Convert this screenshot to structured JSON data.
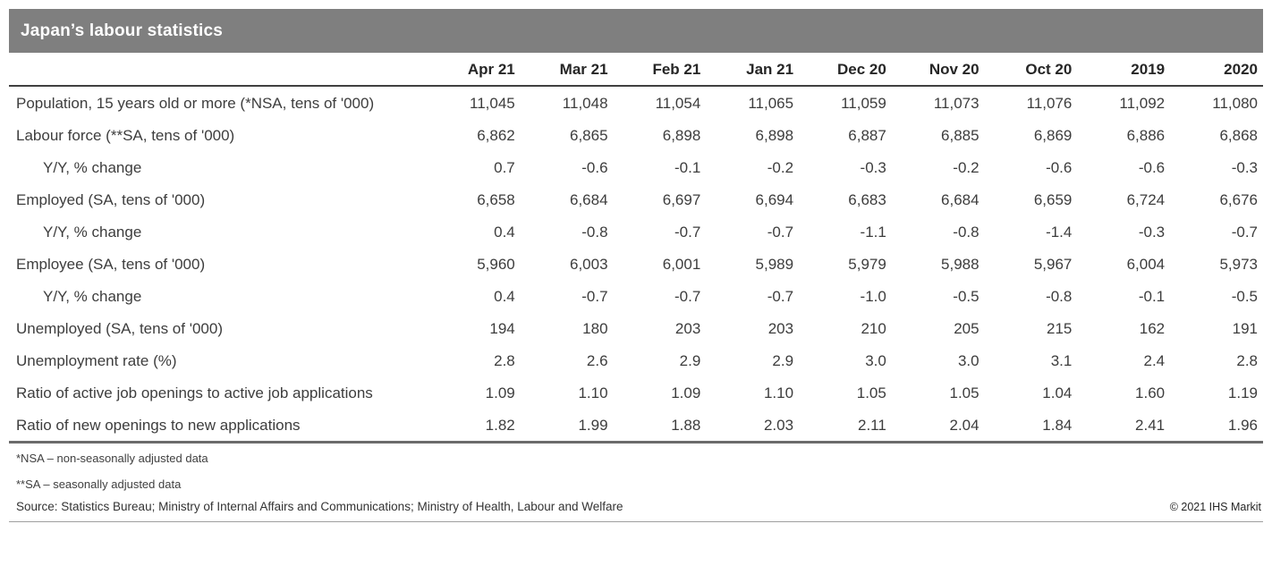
{
  "accent_colors": {
    "title_bar_bg": "#7f7f7f",
    "title_text": "#ffffff",
    "header_rule": "#404040",
    "table_bottom_rule": "#6b6b6b",
    "body_text": "#3d3d3d"
  },
  "chart_data": {
    "type": "table",
    "title": "Japan’s labour statistics",
    "columns": [
      "Apr 21",
      "Mar 21",
      "Feb 21",
      "Jan 21",
      "Dec 20",
      "Nov 20",
      "Oct 20",
      "2019",
      "2020"
    ],
    "rows": [
      {
        "label": "Population, 15 years old or more (*NSA, tens of '000)",
        "indent": false,
        "values": [
          "11,045",
          "11,048",
          "11,054",
          "11,065",
          "11,059",
          "11,073",
          "11,076",
          "11,092",
          "11,080"
        ]
      },
      {
        "label": "Labour force (**SA, tens of '000)",
        "indent": false,
        "values": [
          "6,862",
          "6,865",
          "6,898",
          "6,898",
          "6,887",
          "6,885",
          "6,869",
          "6,886",
          "6,868"
        ]
      },
      {
        "label": "Y/Y, % change",
        "indent": true,
        "values": [
          "0.7",
          "-0.6",
          "-0.1",
          "-0.2",
          "-0.3",
          "-0.2",
          "-0.6",
          "-0.6",
          "-0.3"
        ]
      },
      {
        "label": "Employed (SA, tens of '000)",
        "indent": false,
        "values": [
          "6,658",
          "6,684",
          "6,697",
          "6,694",
          "6,683",
          "6,684",
          "6,659",
          "6,724",
          "6,676"
        ]
      },
      {
        "label": "Y/Y, % change",
        "indent": true,
        "values": [
          "0.4",
          "-0.8",
          "-0.7",
          "-0.7",
          "-1.1",
          "-0.8",
          "-1.4",
          "-0.3",
          "-0.7"
        ]
      },
      {
        "label": "Employee (SA, tens of '000)",
        "indent": false,
        "values": [
          "5,960",
          "6,003",
          "6,001",
          "5,989",
          "5,979",
          "5,988",
          "5,967",
          "6,004",
          "5,973"
        ]
      },
      {
        "label": "Y/Y, % change",
        "indent": true,
        "values": [
          "0.4",
          "-0.7",
          "-0.7",
          "-0.7",
          "-1.0",
          "-0.5",
          "-0.8",
          "-0.1",
          "-0.5"
        ]
      },
      {
        "label": "Unemployed (SA, tens of '000)",
        "indent": false,
        "values": [
          "194",
          "180",
          "203",
          "203",
          "210",
          "205",
          "215",
          "162",
          "191"
        ]
      },
      {
        "label": "Unemployment rate (%)",
        "indent": false,
        "values": [
          "2.8",
          "2.6",
          "2.9",
          "2.9",
          "3.0",
          "3.0",
          "3.1",
          "2.4",
          "2.8"
        ]
      },
      {
        "label": "Ratio of active job openings to active job applications",
        "indent": false,
        "values": [
          "1.09",
          "1.10",
          "1.09",
          "1.10",
          "1.05",
          "1.05",
          "1.04",
          "1.60",
          "1.19"
        ]
      },
      {
        "label": "Ratio of new openings to new applications",
        "indent": false,
        "values": [
          "1.82",
          "1.99",
          "1.88",
          "2.03",
          "2.11",
          "2.04",
          "1.84",
          "2.41",
          "1.96"
        ]
      }
    ],
    "footnotes": [
      "*NSA – non-seasonally adjusted data",
      "**SA – seasonally adjusted data"
    ],
    "source": "Source: Statistics Bureau; Ministry of Internal Affairs and Communications; Ministry of Health, Labour and Welfare",
    "copyright": "© 2021 IHS Markit"
  }
}
